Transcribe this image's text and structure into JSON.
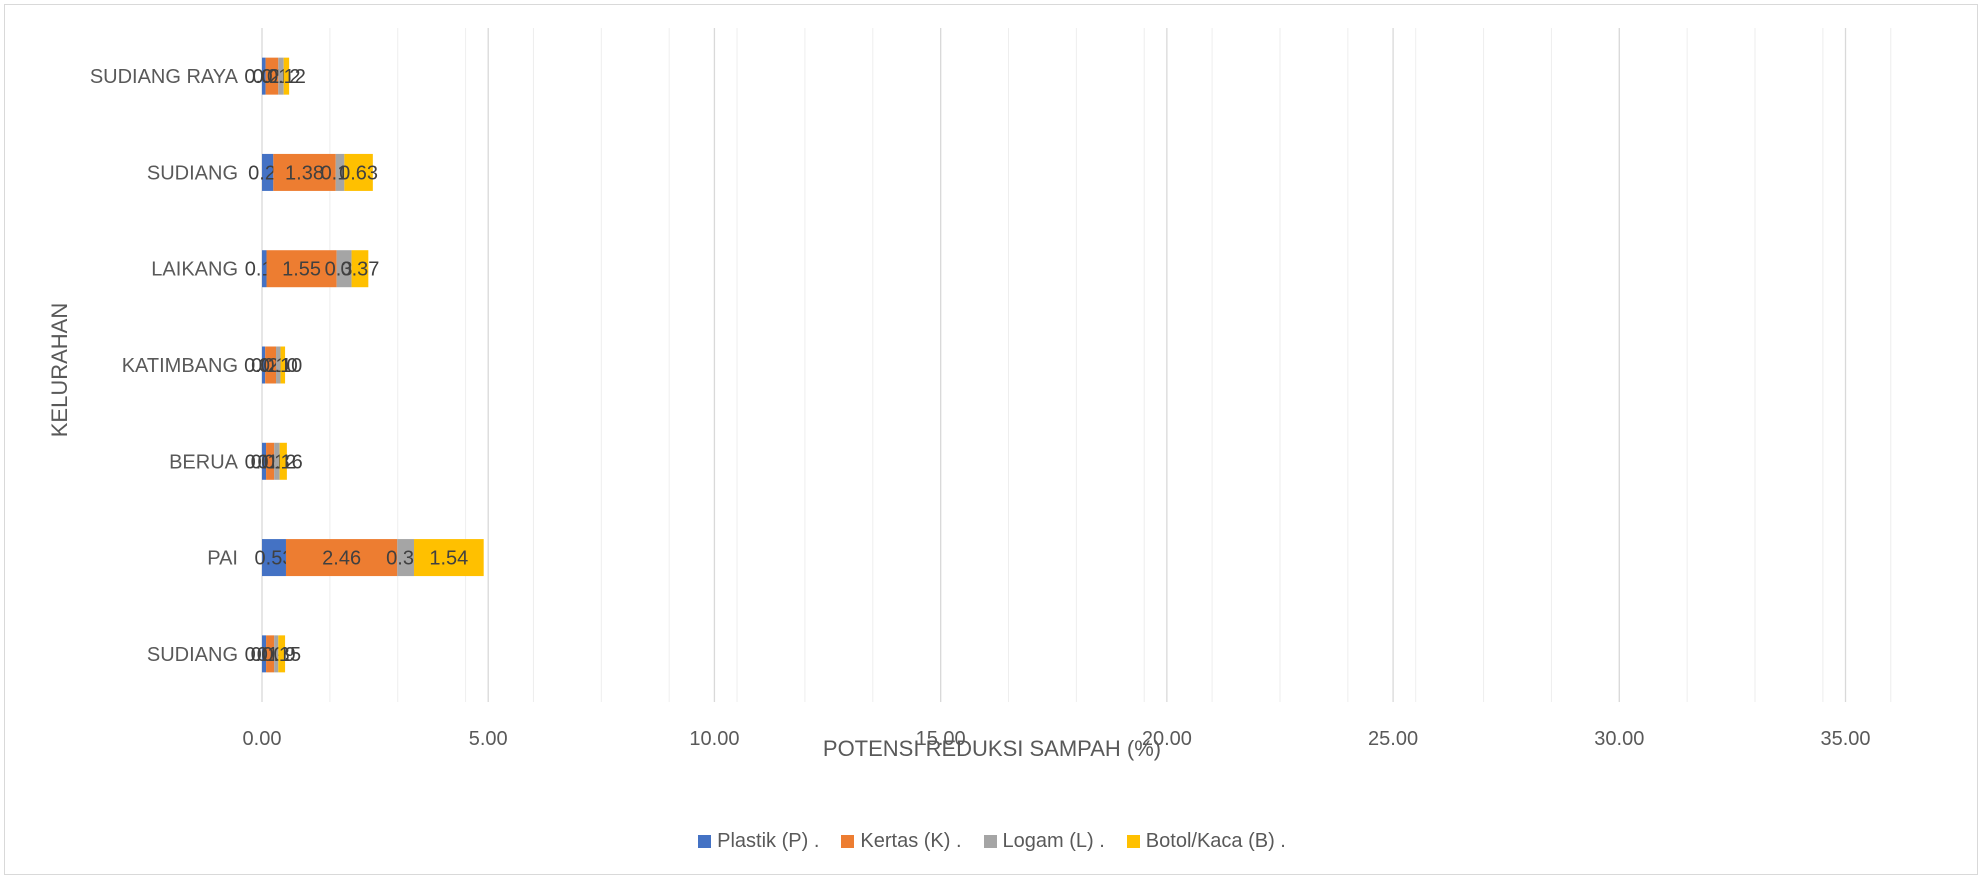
{
  "chart_data": {
    "type": "bar",
    "orientation": "horizontal",
    "stacked": true,
    "categories": [
      "SUDIANG",
      "PAI",
      "BERUA",
      "KATIMBANG",
      "LAIKANG",
      "SUDIANG",
      "SUDIANG  RAYA"
    ],
    "series": [
      {
        "name": "Plastik (P) .",
        "color": "#4472C4",
        "values": [
          0.09,
          0.53,
          0.09,
          0.07,
          0.1,
          0.25,
          0.08
        ]
      },
      {
        "name": "Kertas (K) .",
        "color": "#ED7D31",
        "values": [
          0.18,
          2.46,
          0.18,
          0.24,
          1.55,
          1.38,
          0.28
        ]
      },
      {
        "name": "Logam (L) .",
        "color": "#A5A5A5",
        "values": [
          0.09,
          0.37,
          0.12,
          0.1,
          0.33,
          0.19,
          0.12
        ]
      },
      {
        "name": "Botol/Kaca (B) .",
        "color": "#FFC000",
        "values": [
          0.15,
          1.54,
          0.16,
          0.1,
          0.37,
          0.63,
          0.12
        ]
      }
    ],
    "data_labels": [
      [
        "0.09",
        "0.18",
        "0.09",
        "0.15"
      ],
      [
        "0.53",
        "2.46",
        "0.37",
        "1.54"
      ],
      [
        "0.09",
        "0.18",
        "0.12",
        "0.16"
      ],
      [
        "0.07",
        "0.24",
        "0.10",
        "0.10"
      ],
      [
        "0.10",
        "1.55",
        "0.33",
        "0.37"
      ],
      [
        "0.25",
        "1.38",
        "0.19",
        "0.63"
      ],
      [
        "0.08",
        "0.28",
        "0.12",
        "0.12"
      ]
    ],
    "x_ticks": [
      "0.00",
      "5.00",
      "10.00",
      "15.00",
      "20.00",
      "25.00",
      "30.00",
      "35.00"
    ],
    "xlim": [
      0,
      37
    ],
    "major_step": 5,
    "minor_step": 1.5,
    "xlabel": "POTENSI REDUKSI SAMPAH (%)",
    "ylabel": "KELURAHAN",
    "grid": true,
    "legend_position": "bottom"
  }
}
